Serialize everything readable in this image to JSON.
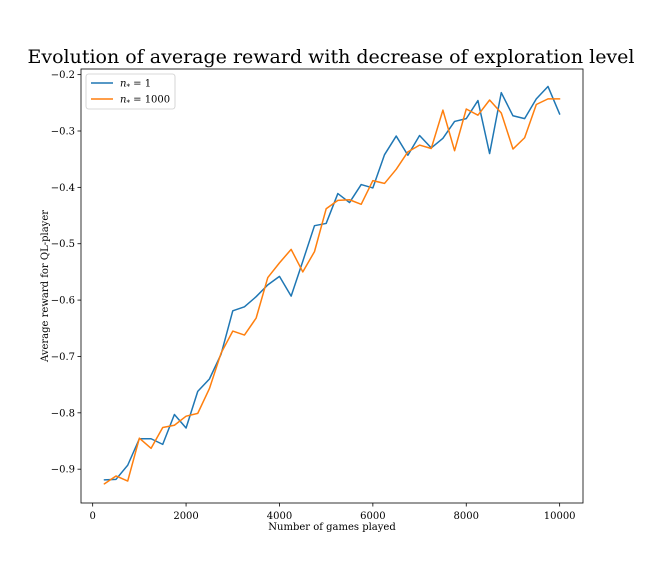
{
  "chart_data": {
    "type": "line",
    "title": "Evolution of average reward with decrease of exploration level",
    "xlabel": "Number of games played",
    "ylabel": "Average reward for QL-player",
    "xlim": [
      -250,
      10500
    ],
    "ylim": [
      -0.96,
      -0.19
    ],
    "xticks": [
      0,
      2000,
      4000,
      6000,
      8000,
      10000
    ],
    "yticks": [
      -0.9,
      -0.8,
      -0.7,
      -0.6,
      -0.5,
      -0.4,
      -0.3,
      -0.2
    ],
    "xtick_labels": [
      "0",
      "2000",
      "4000",
      "6000",
      "8000",
      "10000"
    ],
    "ytick_labels": [
      "−0.9",
      "−0.8",
      "−0.7",
      "−0.6",
      "−0.5",
      "−0.4",
      "−0.3",
      "−0.2"
    ],
    "grid": false,
    "legend_position": "top-left",
    "series": [
      {
        "name": "n* = 1",
        "legend_base": "n",
        "legend_sub": "*",
        "legend_rest": " = 1",
        "color": "#1f77b4",
        "x": [
          250,
          500,
          750,
          1000,
          1250,
          1500,
          1750,
          2000,
          2250,
          2500,
          2750,
          3000,
          3250,
          3500,
          3750,
          4000,
          4250,
          4500,
          4750,
          5000,
          5250,
          5500,
          5750,
          6000,
          6250,
          6500,
          6750,
          7000,
          7250,
          7500,
          7750,
          8000,
          8250,
          8500,
          8750,
          9000,
          9250,
          9500,
          9750,
          10000
        ],
        "y": [
          -0.919,
          -0.918,
          -0.893,
          -0.846,
          -0.846,
          -0.856,
          -0.803,
          -0.827,
          -0.762,
          -0.74,
          -0.696,
          -0.619,
          -0.612,
          -0.594,
          -0.573,
          -0.558,
          -0.593,
          -0.531,
          -0.468,
          -0.464,
          -0.411,
          -0.427,
          -0.395,
          -0.401,
          -0.342,
          -0.309,
          -0.343,
          -0.308,
          -0.33,
          -0.313,
          -0.283,
          -0.278,
          -0.246,
          -0.34,
          -0.232,
          -0.273,
          -0.278,
          -0.243,
          -0.221,
          -0.27
        ]
      },
      {
        "name": "n* = 1000",
        "legend_base": "n",
        "legend_sub": "*",
        "legend_rest": " = 1000",
        "color": "#ff7f0e",
        "x": [
          250,
          500,
          750,
          1000,
          1250,
          1500,
          1750,
          2000,
          2250,
          2500,
          2750,
          3000,
          3250,
          3500,
          3750,
          4000,
          4250,
          4500,
          4750,
          5000,
          5250,
          5500,
          5750,
          6000,
          6250,
          6500,
          6750,
          7000,
          7250,
          7500,
          7750,
          8000,
          8250,
          8500,
          8750,
          9000,
          9250,
          9500,
          9750,
          10000
        ],
        "y": [
          -0.926,
          -0.912,
          -0.921,
          -0.845,
          -0.863,
          -0.826,
          -0.822,
          -0.806,
          -0.801,
          -0.757,
          -0.694,
          -0.655,
          -0.662,
          -0.632,
          -0.56,
          -0.534,
          -0.51,
          -0.55,
          -0.514,
          -0.438,
          -0.423,
          -0.422,
          -0.43,
          -0.388,
          -0.393,
          -0.368,
          -0.337,
          -0.325,
          -0.331,
          -0.263,
          -0.335,
          -0.261,
          -0.272,
          -0.245,
          -0.268,
          -0.332,
          -0.312,
          -0.253,
          -0.243,
          -0.243
        ]
      }
    ]
  }
}
